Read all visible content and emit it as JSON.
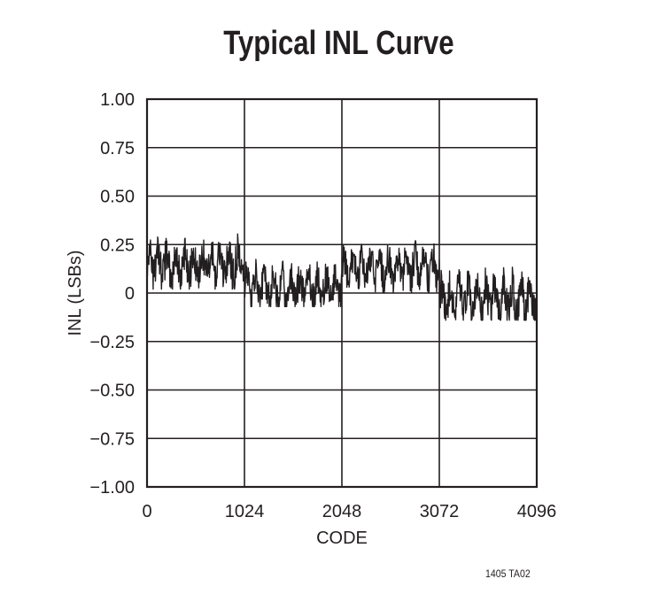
{
  "title": "Typical INL Curve",
  "footer_id": "1405 TA02",
  "colors": {
    "ink": "#231f20",
    "grid": "#231f20",
    "background": "#ffffff"
  },
  "chart_data": {
    "type": "line",
    "title": "Typical INL Curve",
    "xlabel": "CODE",
    "ylabel": "INL (LSBs)",
    "xlim": [
      0,
      4096
    ],
    "ylim": [
      -1.0,
      1.0
    ],
    "grid": true,
    "legend": null,
    "x_ticks": [
      0,
      1024,
      2048,
      3072,
      4096
    ],
    "x_tick_labels": [
      "0",
      "1024",
      "2048",
      "3072",
      "4096"
    ],
    "y_ticks": [
      1.0,
      0.75,
      0.5,
      0.25,
      0,
      -0.25,
      -0.5,
      -0.75,
      -1.0
    ],
    "y_tick_labels": [
      "1.00",
      "0.75",
      "0.50",
      "0.25",
      "0",
      "−0.25",
      "−0.50",
      "−0.75",
      "−1.00"
    ],
    "series": [
      {
        "name": "INL",
        "description": "Noisy INL trace; segment means and peak-to-peak ranges estimated from the plot",
        "segments": [
          {
            "x_start": 0,
            "x_end": 1024,
            "mean": 0.15,
            "min": 0.02,
            "max": 0.31
          },
          {
            "x_start": 1024,
            "x_end": 2048,
            "mean": 0.03,
            "min": -0.07,
            "max": 0.2
          },
          {
            "x_start": 2048,
            "x_end": 3072,
            "mean": 0.13,
            "min": 0.0,
            "max": 0.27
          },
          {
            "x_start": 3072,
            "x_end": 4096,
            "mean": -0.03,
            "min": -0.14,
            "max": 0.16
          }
        ]
      }
    ]
  }
}
